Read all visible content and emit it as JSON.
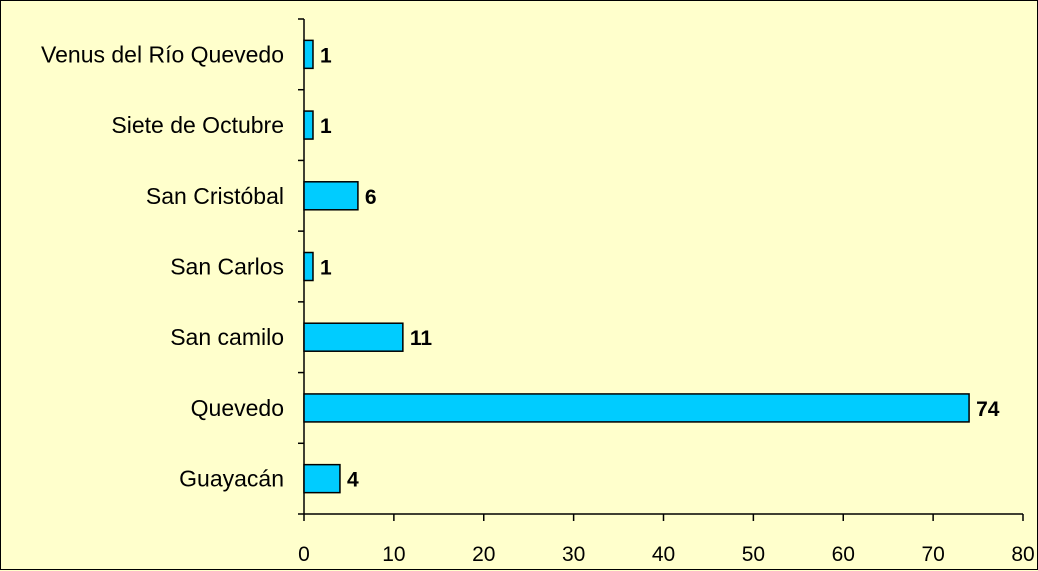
{
  "chart_data": {
    "type": "bar",
    "orientation": "horizontal",
    "categories": [
      "Venus del Río Quevedo",
      "Siete de Octubre",
      "San Cristóbal",
      "San Carlos",
      "San camilo",
      "Quevedo",
      "Guayacán"
    ],
    "values": [
      1,
      1,
      6,
      1,
      11,
      74,
      4
    ],
    "xlim": [
      0,
      80
    ],
    "xticks": [
      "0",
      "10",
      "20",
      "30",
      "40",
      "50",
      "60",
      "70",
      "80"
    ],
    "grid": false,
    "legend": "none",
    "bar_color": "#00ccff",
    "background_color": "#ffffcc"
  }
}
